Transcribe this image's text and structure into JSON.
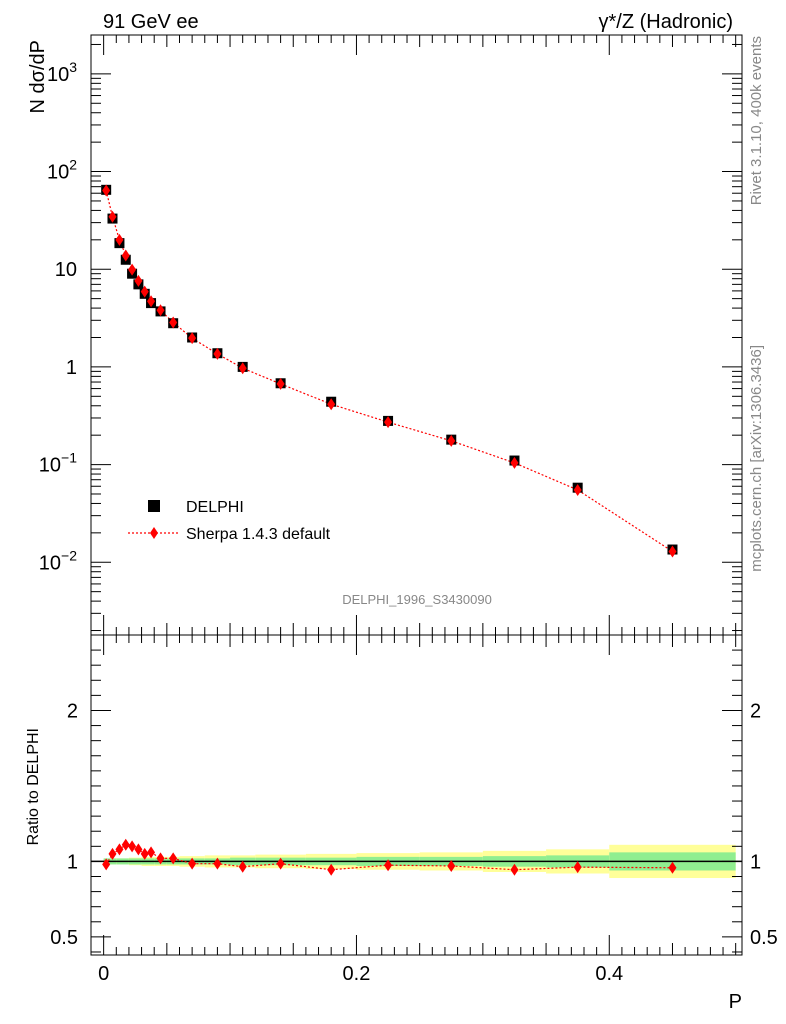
{
  "chart_data": {
    "type": "scatter",
    "header_left": "91 GeV ee",
    "header_right": "γ*/Z (Hadronic)",
    "side_text_top": "Rivet 3.1.10,  400k events",
    "side_text_bottom": "mcplots.cern.ch [arXiv:1306.3436]",
    "analysis_label": "DELPHI_1996_S3430090",
    "xlabel": "P",
    "ylabel_main": "N dσ/dP",
    "ylabel_ratio": "Ratio to DELPHI",
    "xlim": [
      -0.01,
      0.505
    ],
    "ylim_main_log": [
      0.0018,
      2500
    ],
    "ylim_ratio": [
      0.38,
      2.5
    ],
    "x_ticks": [
      "0",
      "0.2",
      "0.4"
    ],
    "x_tick_values": [
      0,
      0.2,
      0.4
    ],
    "main_y_ticks": [
      {
        "value": 0.01,
        "base": "10",
        "exp": "−2"
      },
      {
        "value": 0.1,
        "base": "10",
        "exp": "−1"
      },
      {
        "value": 1,
        "base": "1",
        "exp": ""
      },
      {
        "value": 10,
        "base": "10",
        "exp": ""
      },
      {
        "value": 100,
        "base": "10",
        "exp": "2"
      },
      {
        "value": 1000,
        "base": "10",
        "exp": "3"
      }
    ],
    "ratio_y_ticks": [
      {
        "value": 0.5,
        "label": "0.5"
      },
      {
        "value": 1,
        "label": "1"
      },
      {
        "value": 2,
        "label": "2"
      }
    ],
    "legend": {
      "position": "middle-left",
      "entries": [
        "DELPHI",
        "Sherpa 1.4.3 default"
      ]
    },
    "series": [
      {
        "name": "DELPHI",
        "marker": "square",
        "color": "#000000",
        "x": [
          0.002,
          0.007,
          0.0125,
          0.0175,
          0.0225,
          0.0275,
          0.0325,
          0.0375,
          0.045,
          0.055,
          0.07,
          0.09,
          0.11,
          0.14,
          0.18,
          0.225,
          0.275,
          0.325,
          0.375,
          0.45
        ],
        "y": [
          65,
          33,
          18.5,
          12.5,
          9.0,
          7.0,
          5.6,
          4.5,
          3.7,
          2.8,
          2.0,
          1.38,
          1.0,
          0.68,
          0.44,
          0.28,
          0.18,
          0.11,
          0.058,
          0.0135
        ]
      },
      {
        "name": "Sherpa 1.4.3 default",
        "marker": "diamond",
        "color": "#ff0000",
        "x": [
          0.002,
          0.007,
          0.0125,
          0.0175,
          0.0225,
          0.0275,
          0.0325,
          0.0375,
          0.045,
          0.055,
          0.07,
          0.09,
          0.11,
          0.14,
          0.18,
          0.225,
          0.275,
          0.325,
          0.375,
          0.45
        ],
        "y": [
          64,
          34.5,
          20,
          13.8,
          9.9,
          7.6,
          5.9,
          4.7,
          3.8,
          2.85,
          1.97,
          1.36,
          0.97,
          0.67,
          0.415,
          0.272,
          0.175,
          0.104,
          0.055,
          0.0129
        ]
      }
    ],
    "ratio": {
      "x": [
        0.002,
        0.007,
        0.0125,
        0.0175,
        0.0225,
        0.0275,
        0.0325,
        0.0375,
        0.045,
        0.055,
        0.07,
        0.09,
        0.11,
        0.14,
        0.18,
        0.225,
        0.275,
        0.325,
        0.375,
        0.45
      ],
      "y": [
        0.98,
        1.05,
        1.08,
        1.11,
        1.1,
        1.08,
        1.05,
        1.06,
        1.02,
        1.02,
        0.985,
        0.985,
        0.965,
        0.985,
        0.945,
        0.975,
        0.97,
        0.945,
        0.962,
        0.958
      ],
      "band_edges": [
        0.0,
        0.01,
        0.02,
        0.03,
        0.04,
        0.05,
        0.06,
        0.08,
        0.1,
        0.12,
        0.16,
        0.2,
        0.25,
        0.3,
        0.35,
        0.4,
        0.5
      ],
      "band_inner": [
        0.02,
        0.02,
        0.02,
        0.02,
        0.02,
        0.02,
        0.02,
        0.02,
        0.025,
        0.025,
        0.025,
        0.03,
        0.03,
        0.035,
        0.04,
        0.06
      ],
      "band_outer": [
        0.02,
        0.02,
        0.025,
        0.03,
        0.03,
        0.03,
        0.035,
        0.04,
        0.04,
        0.045,
        0.05,
        0.055,
        0.06,
        0.07,
        0.08,
        0.11
      ]
    },
    "colors": {
      "band_inner": "#90ee90",
      "band_outer": "#ffff99",
      "data": "#000000",
      "mc": "#ff0000"
    }
  }
}
